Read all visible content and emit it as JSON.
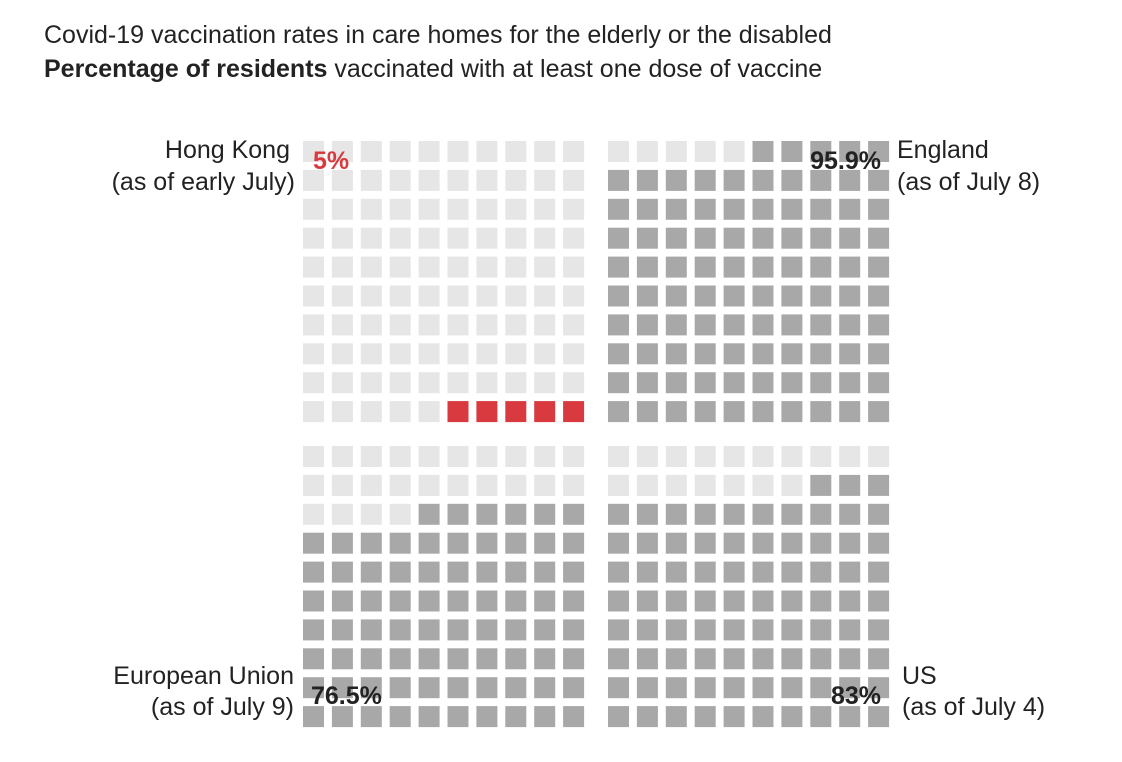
{
  "header": {
    "title": "Covid-19 vaccination rates in care homes for the elderly or the disabled",
    "subtitle_bold": "Percentage of residents",
    "subtitle_rest": " vaccinated with at least one dose of vaccine"
  },
  "colors": {
    "empty": "#e6e6e6",
    "filled": "#a8a8a8",
    "highlight": "#d83a3f",
    "text": "#222222"
  },
  "chart_data": {
    "type": "waffle",
    "title": "Covid-19 vaccination rates in care homes for the elderly or the disabled",
    "subtitle": "Percentage of residents vaccinated with at least one dose of vaccine",
    "unit": "%",
    "grid": "10x10",
    "series": [
      {
        "name": "Hong Kong",
        "date": "(as of early July)",
        "value": 5,
        "label": "5%",
        "highlight": true
      },
      {
        "name": "England",
        "date": "(as of July 8)",
        "value": 95.9,
        "label": "95.9%",
        "highlight": false
      },
      {
        "name": "European Union",
        "date": "(as of July 9)",
        "value": 76.5,
        "label": "76.5%",
        "highlight": false
      },
      {
        "name": "US",
        "date": "(as of July 4)",
        "value": 83,
        "label": "83%",
        "highlight": false
      }
    ]
  }
}
